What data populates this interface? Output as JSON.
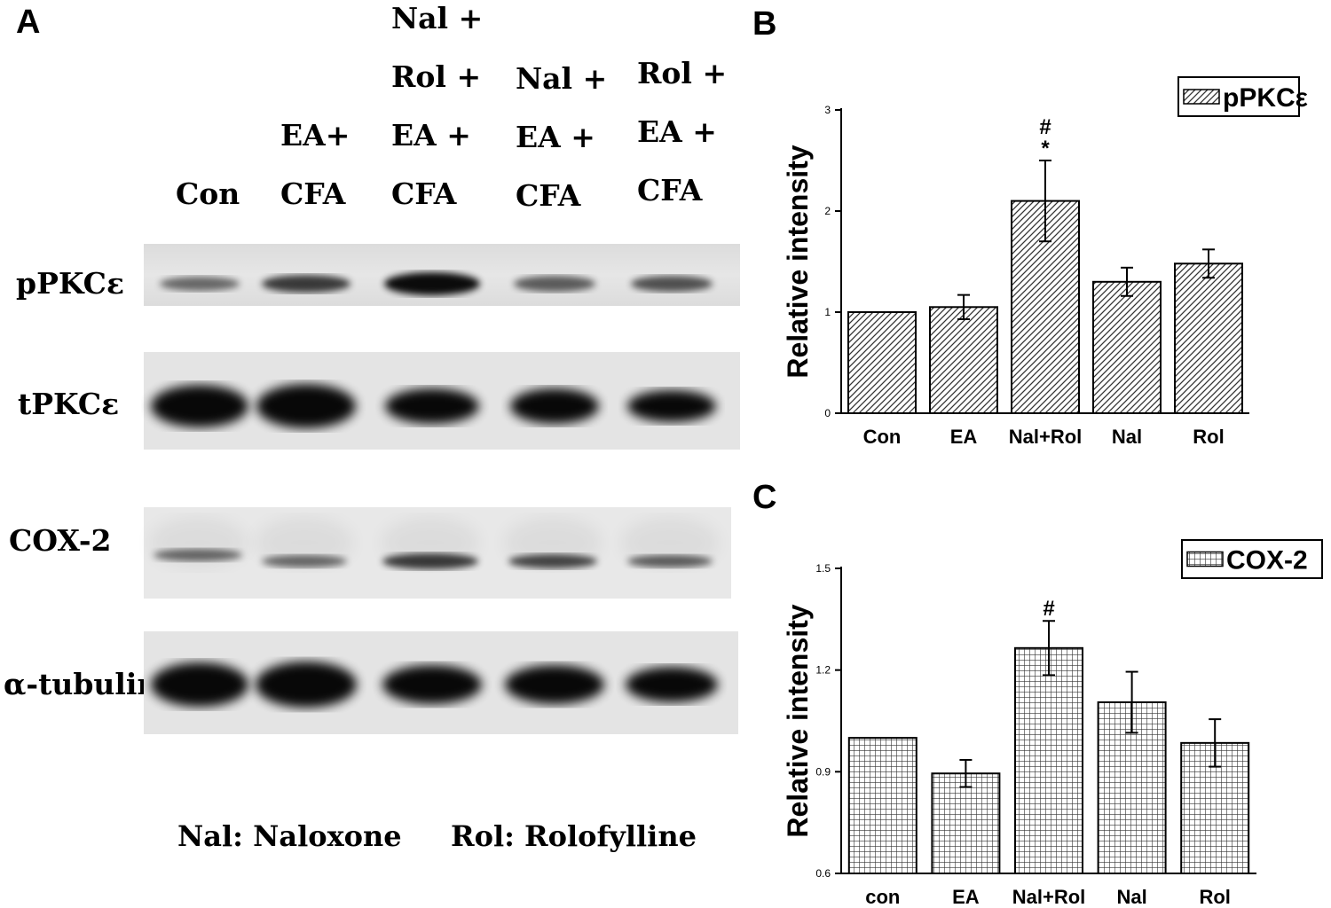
{
  "panel_a": {
    "letter": "A",
    "lanes": [
      [
        "Con"
      ],
      [
        "EA+",
        "CFA"
      ],
      [
        "Nal +",
        "Rol +",
        "EA +",
        "CFA"
      ],
      [
        "Nal +",
        "EA +",
        "CFA"
      ],
      [
        "Rol +",
        "EA +",
        "CFA"
      ]
    ],
    "rows": [
      "pPKCε",
      "tPKCε",
      "COX-2",
      "α-tubulin"
    ],
    "footnotes": [
      "Nal: Naloxone",
      "Rol: Rolofylline"
    ]
  },
  "chart_data": [
    {
      "panel": "B",
      "type": "bar",
      "categories": [
        "Con",
        "EA",
        "Nal+Rol",
        "Nal",
        "Rol"
      ],
      "values": [
        1.0,
        1.05,
        2.1,
        1.3,
        1.48
      ],
      "errors": [
        0,
        0.12,
        0.4,
        0.14,
        0.14
      ],
      "ylabel": "Relative intensity",
      "ylim": [
        0,
        3
      ],
      "yticks": [
        "0",
        "1",
        "2",
        "3"
      ],
      "legend": "pPKCε",
      "legend_position": "top-right",
      "pattern": "diagonal-hatch",
      "annotations": [
        {
          "category": "Nal+Rol",
          "marks": [
            "#",
            "*"
          ]
        }
      ]
    },
    {
      "panel": "C",
      "type": "bar",
      "categories": [
        "con",
        "EA",
        "Nal+Rol",
        "Nal",
        "Rol"
      ],
      "values": [
        1.0,
        0.895,
        1.265,
        1.105,
        0.985
      ],
      "errors": [
        0,
        0.04,
        0.08,
        0.09,
        0.07
      ],
      "ylabel": "Relative intensity",
      "ylim": [
        0.6,
        1.5
      ],
      "yticks": [
        "0.6",
        "0.9",
        "1.2",
        "1.5"
      ],
      "legend": "COX-2",
      "legend_position": "top-right",
      "pattern": "grid-hatch",
      "annotations": [
        {
          "category": "Nal+Rol",
          "marks": [
            "#"
          ]
        }
      ]
    }
  ]
}
